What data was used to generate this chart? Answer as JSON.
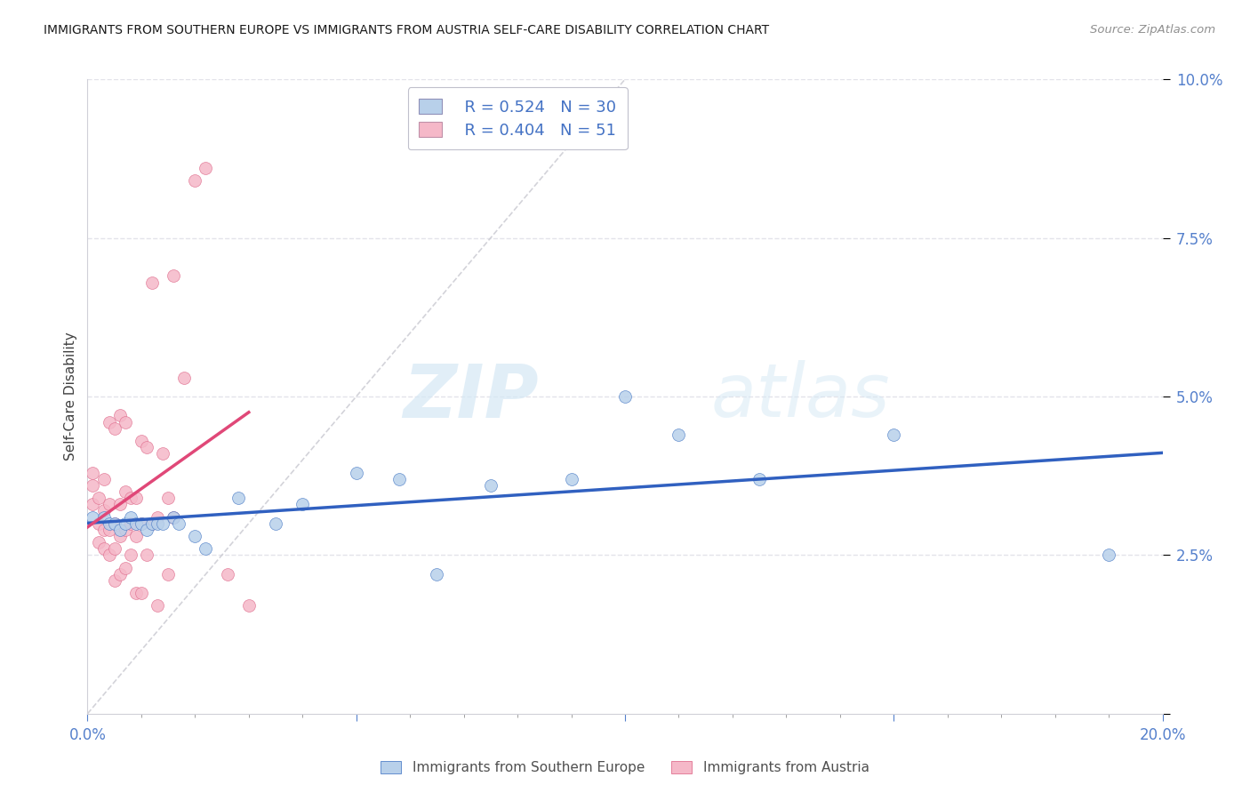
{
  "title": "IMMIGRANTS FROM SOUTHERN EUROPE VS IMMIGRANTS FROM AUSTRIA SELF-CARE DISABILITY CORRELATION CHART",
  "source": "Source: ZipAtlas.com",
  "ylabel": "Self-Care Disability",
  "x_min": 0.0,
  "x_max": 0.2,
  "y_min": 0.0,
  "y_max": 0.1,
  "blue_R": 0.524,
  "blue_N": 30,
  "pink_R": 0.404,
  "pink_N": 51,
  "blue_color": "#b8d0ea",
  "pink_color": "#f5b8c8",
  "blue_edge_color": "#5080c8",
  "pink_edge_color": "#e07090",
  "blue_line_color": "#3060c0",
  "pink_line_color": "#e04878",
  "diag_line_color": "#c8c8d0",
  "grid_color": "#e0e0e8",
  "legend_label_blue": "Immigrants from Southern Europe",
  "legend_label_pink": "Immigrants from Austria",
  "watermark_zip": "ZIP",
  "watermark_atlas": "atlas",
  "blue_x": [
    0.001,
    0.003,
    0.004,
    0.005,
    0.006,
    0.007,
    0.008,
    0.009,
    0.01,
    0.011,
    0.012,
    0.013,
    0.014,
    0.016,
    0.017,
    0.02,
    0.022,
    0.028,
    0.035,
    0.04,
    0.05,
    0.058,
    0.065,
    0.075,
    0.09,
    0.1,
    0.11,
    0.125,
    0.15,
    0.19
  ],
  "blue_y": [
    0.031,
    0.031,
    0.03,
    0.03,
    0.029,
    0.03,
    0.031,
    0.03,
    0.03,
    0.029,
    0.03,
    0.03,
    0.03,
    0.031,
    0.03,
    0.028,
    0.026,
    0.034,
    0.03,
    0.033,
    0.038,
    0.037,
    0.022,
    0.036,
    0.037,
    0.05,
    0.044,
    0.037,
    0.044,
    0.025
  ],
  "pink_x": [
    0.001,
    0.001,
    0.001,
    0.002,
    0.002,
    0.002,
    0.003,
    0.003,
    0.003,
    0.003,
    0.004,
    0.004,
    0.004,
    0.004,
    0.005,
    0.005,
    0.005,
    0.005,
    0.006,
    0.006,
    0.006,
    0.006,
    0.007,
    0.007,
    0.007,
    0.007,
    0.008,
    0.008,
    0.008,
    0.009,
    0.009,
    0.009,
    0.01,
    0.01,
    0.01,
    0.011,
    0.011,
    0.012,
    0.012,
    0.013,
    0.013,
    0.014,
    0.015,
    0.015,
    0.016,
    0.016,
    0.018,
    0.02,
    0.022,
    0.026,
    0.03
  ],
  "pink_y": [
    0.033,
    0.036,
    0.038,
    0.027,
    0.03,
    0.034,
    0.026,
    0.029,
    0.032,
    0.037,
    0.025,
    0.029,
    0.033,
    0.046,
    0.021,
    0.026,
    0.03,
    0.045,
    0.022,
    0.028,
    0.033,
    0.047,
    0.023,
    0.029,
    0.035,
    0.046,
    0.025,
    0.03,
    0.034,
    0.019,
    0.028,
    0.034,
    0.019,
    0.03,
    0.043,
    0.025,
    0.042,
    0.03,
    0.068,
    0.017,
    0.031,
    0.041,
    0.022,
    0.034,
    0.031,
    0.069,
    0.053,
    0.084,
    0.086,
    0.022,
    0.017
  ]
}
